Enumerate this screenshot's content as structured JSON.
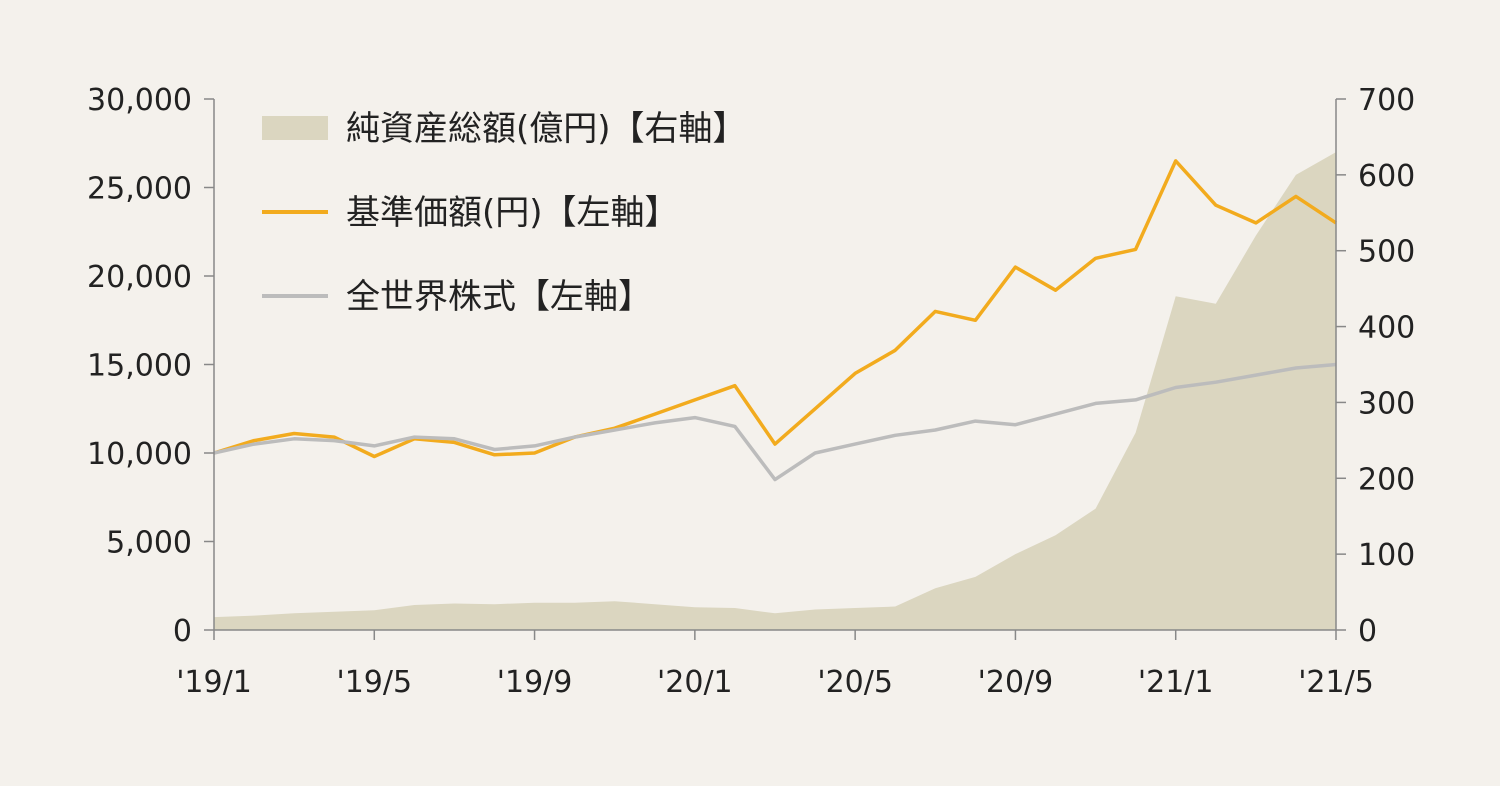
{
  "chart_data": {
    "type": "line",
    "legend_placement": "top-left",
    "grid": false,
    "x_tick_labels": [
      "'19/1",
      "'19/5",
      "'19/9",
      "'20/1",
      "'20/5",
      "'20/9",
      "'21/1",
      "'21/5"
    ],
    "x_range": [
      "2019-01",
      "2021-05"
    ],
    "y_left": {
      "range": [
        0,
        30000
      ],
      "tick_labels": [
        "0",
        "5,000",
        "10,000",
        "15,000",
        "20,000",
        "25,000",
        "30,000"
      ]
    },
    "y_right": {
      "range": [
        0,
        700
      ],
      "tick_labels": [
        "0",
        "100",
        "200",
        "300",
        "400",
        "500",
        "600",
        "700"
      ]
    },
    "series": [
      {
        "name": "純資産総額(億円)【右軸】",
        "kind": "area",
        "axis": "right",
        "color": "#dbd6c0",
        "x": [
          "2019-01",
          "2019-02",
          "2019-03",
          "2019-04",
          "2019-05",
          "2019-06",
          "2019-07",
          "2019-08",
          "2019-09",
          "2019-10",
          "2019-11",
          "2019-12",
          "2020-01",
          "2020-02",
          "2020-03",
          "2020-04",
          "2020-05",
          "2020-06",
          "2020-07",
          "2020-08",
          "2020-09",
          "2020-10",
          "2020-11",
          "2020-12",
          "2021-01",
          "2021-02",
          "2021-03",
          "2021-04",
          "2021-05"
        ],
        "values": [
          17,
          19,
          22,
          24,
          26,
          33,
          35,
          34,
          36,
          36,
          38,
          34,
          30,
          29,
          22,
          27,
          29,
          31,
          55,
          70,
          100,
          125,
          160,
          260,
          440,
          430,
          520,
          600,
          630
        ]
      },
      {
        "name": "基準価額(円)【左軸】",
        "kind": "line",
        "axis": "left",
        "color": "#f2ab1e",
        "x": [
          "2019-01",
          "2019-02",
          "2019-03",
          "2019-04",
          "2019-05",
          "2019-06",
          "2019-07",
          "2019-08",
          "2019-09",
          "2019-10",
          "2019-11",
          "2019-12",
          "2020-01",
          "2020-02",
          "2020-03",
          "2020-04",
          "2020-05",
          "2020-06",
          "2020-07",
          "2020-08",
          "2020-09",
          "2020-10",
          "2020-11",
          "2020-12",
          "2021-01",
          "2021-02",
          "2021-03",
          "2021-04",
          "2021-05"
        ],
        "values": [
          10000,
          10700,
          11100,
          10900,
          9800,
          10800,
          10600,
          9900,
          10000,
          10900,
          11400,
          12200,
          13000,
          13800,
          10500,
          12500,
          14500,
          15800,
          18000,
          17500,
          20500,
          19200,
          21000,
          21500,
          26500,
          24000,
          23000,
          24500,
          23000
        ]
      },
      {
        "name": "全世界株式【左軸】",
        "kind": "line",
        "axis": "left",
        "color": "#bcbcbc",
        "x": [
          "2019-01",
          "2019-02",
          "2019-03",
          "2019-04",
          "2019-05",
          "2019-06",
          "2019-07",
          "2019-08",
          "2019-09",
          "2019-10",
          "2019-11",
          "2019-12",
          "2020-01",
          "2020-02",
          "2020-03",
          "2020-04",
          "2020-05",
          "2020-06",
          "2020-07",
          "2020-08",
          "2020-09",
          "2020-10",
          "2020-11",
          "2020-12",
          "2021-01",
          "2021-02",
          "2021-03",
          "2021-04",
          "2021-05"
        ],
        "values": [
          10000,
          10500,
          10800,
          10700,
          10400,
          10900,
          10800,
          10200,
          10400,
          10900,
          11300,
          11700,
          12000,
          11500,
          8500,
          10000,
          10500,
          11000,
          11300,
          11800,
          11600,
          12200,
          12800,
          13000,
          13700,
          14000,
          14400,
          14800,
          15000
        ]
      }
    ]
  }
}
